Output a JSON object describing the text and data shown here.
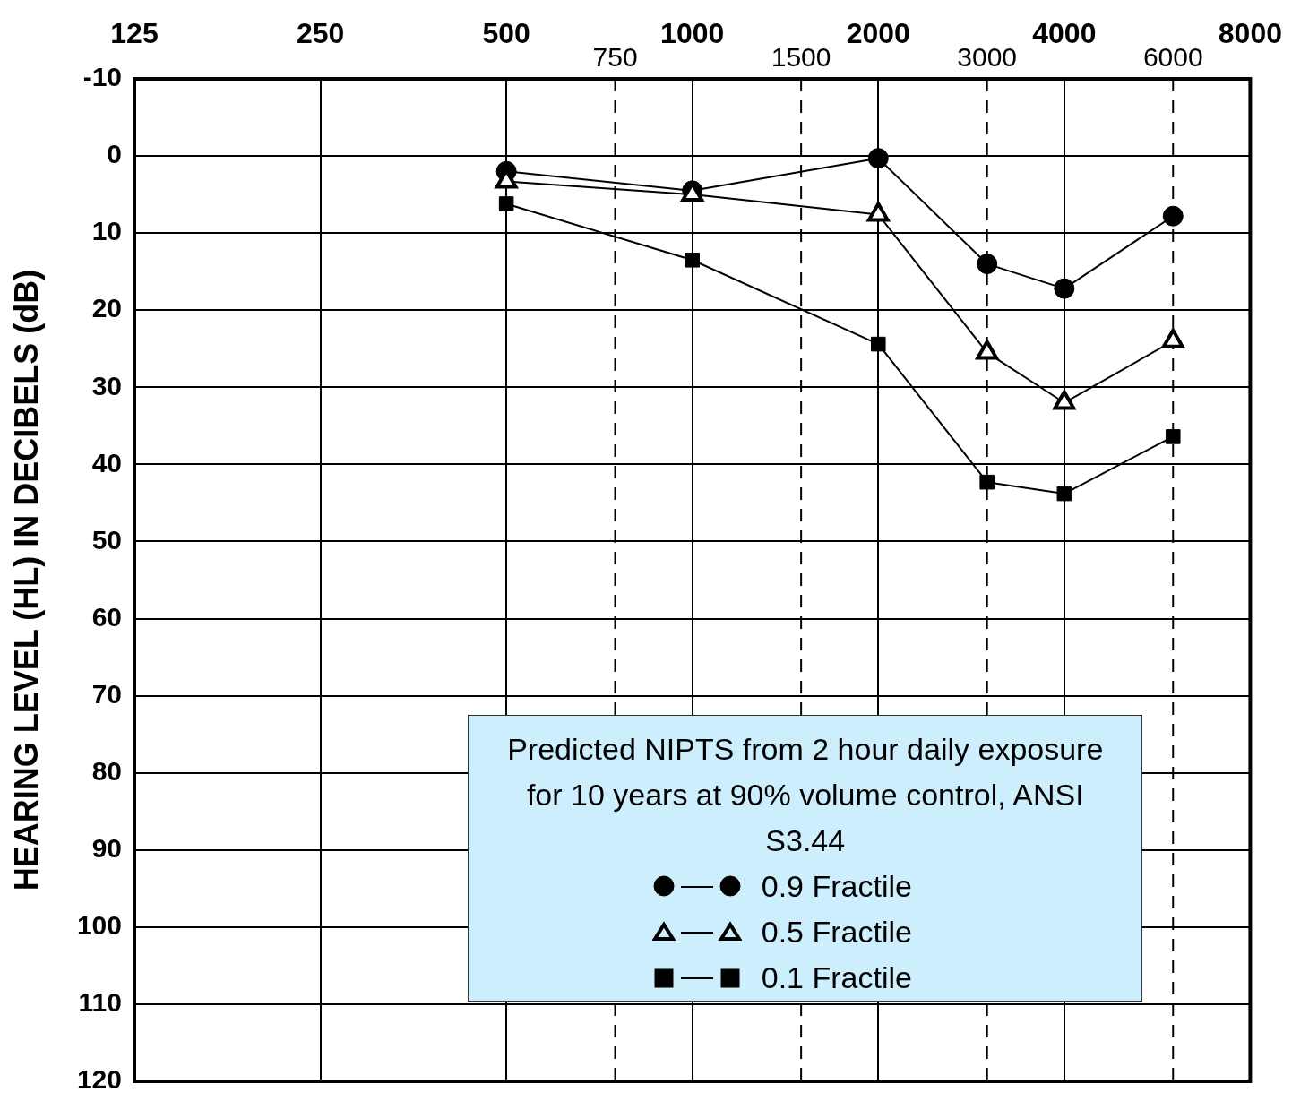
{
  "chart_data": {
    "type": "line",
    "ylabel": "HEARING LEVEL (HL) IN DECIBELS (dB)",
    "legend_title": "Predicted NIPTS from 2 hour daily exposure for 10 years at 90% volume control, ANSI S3.44",
    "legend": "bottom right",
    "grid": true,
    "log": "x",
    "x": [
      500,
      1000,
      2000,
      3000,
      4000,
      6000
    ],
    "xlim": [
      125,
      8000
    ],
    "xticks": [
      125,
      250,
      500,
      1000,
      2000,
      4000,
      8000
    ],
    "ylim": [
      120,
      -10
    ],
    "yticks": [
      -10,
      0,
      10,
      20,
      30,
      40,
      50,
      60,
      70,
      80,
      90,
      100,
      110,
      120
    ],
    "ref_lines": [
      {
        "axis": "x",
        "value": 750,
        "label": "750",
        "line_style": "dashed",
        "color": "#000000"
      },
      {
        "axis": "x",
        "value": 1500,
        "label": "1500",
        "line_style": "dashed",
        "color": "#000000"
      },
      {
        "axis": "x",
        "value": 3000,
        "label": "3000",
        "line_style": "dashed",
        "color": "#000000"
      },
      {
        "axis": "x",
        "value": 6000,
        "label": "6000",
        "line_style": "dashed",
        "color": "#000000"
      }
    ],
    "series": [
      {
        "name": "0.9 Fractile",
        "color": "#000000",
        "marker": "circle",
        "values": [
          2,
          4.5,
          0.3,
          14,
          17.2,
          7.8
        ]
      },
      {
        "name": "0.5 Fractile",
        "color": "#000000",
        "marker": "triangle",
        "values": [
          3.3,
          5,
          7.6,
          25.5,
          32,
          24
        ]
      },
      {
        "name": "0.1 Fractile",
        "color": "#000000",
        "marker": "square",
        "values": [
          6.2,
          13.5,
          24.4,
          42.3,
          43.8,
          36.4
        ]
      }
    ]
  }
}
